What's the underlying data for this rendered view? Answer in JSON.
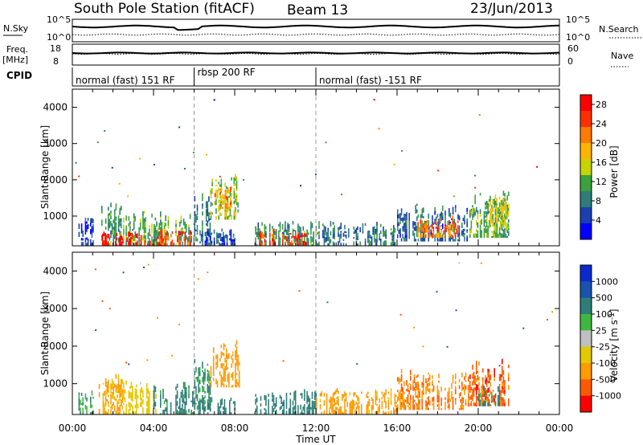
{
  "header": {
    "station": "South Pole Station (fitACF)",
    "beam": "Beam 13",
    "date": "23/Jun/2013"
  },
  "top_panels": {
    "nsky_label": "N.Sky",
    "nsky_ticks": [
      "10^5",
      "10^0"
    ],
    "nsearch_label": "N.Search",
    "nsearch_ticks": [
      "10^5",
      "10^0"
    ],
    "freq_label_1": "Freq.",
    "freq_label_2": "[MHz]",
    "freq_ticks": [
      "18",
      "8"
    ],
    "nave_label": "Nave",
    "nave_ticks": [
      "60",
      "0"
    ],
    "cpid_label": "CPID"
  },
  "cpid_segments": [
    {
      "label": "normal (fast) 151 RF",
      "start_hour": 0
    },
    {
      "label": "rbsp 200 RF",
      "start_hour": 6
    },
    {
      "label": "normal (fast) -151 RF",
      "start_hour": 12
    }
  ],
  "colors": {
    "power_scale": [
      "#0000ff",
      "#1a3fb0",
      "#2e7d78",
      "#3aa23a",
      "#c8d400",
      "#ffb400",
      "#ff7a00",
      "#ff3000",
      "#ff0000"
    ],
    "velocity_scale": [
      "#0a2ad0",
      "#1b52b0",
      "#2e7d78",
      "#3fb83f",
      "#c0c0c0",
      "#e6c800",
      "#ff9a00",
      "#ff5a00",
      "#ff0000"
    ]
  },
  "chart_data": [
    {
      "type": "heatmap",
      "name": "power",
      "xlabel": "",
      "ylabel": "Slant Range [km]",
      "yticks": [
        "1000",
        "2000",
        "3000",
        "4000"
      ],
      "x_ticks": [
        "00:00",
        "04:00",
        "08:00",
        "12:00",
        "16:00",
        "20:00",
        "00:00"
      ],
      "xlim_hours": [
        0,
        24
      ],
      "ylim_km": [
        180,
        4500
      ],
      "colorbar_label": "Power [dB]",
      "colorbar_ticks": [
        "4",
        "8",
        "12",
        "16",
        "20",
        "24",
        "28"
      ],
      "colorbar_range": [
        0,
        30
      ],
      "regions": [
        {
          "t0": 0.3,
          "t1": 1.1,
          "r0": 180,
          "r1": 900,
          "value": 5
        },
        {
          "t0": 1.3,
          "t1": 2.4,
          "r0": 180,
          "r1": 1300,
          "value": 10
        },
        {
          "t0": 1.4,
          "t1": 2.5,
          "r0": 180,
          "r1": 500,
          "value": 27
        },
        {
          "t0": 2.5,
          "t1": 4.0,
          "r0": 180,
          "r1": 1100,
          "value": 12
        },
        {
          "t0": 2.6,
          "t1": 4.2,
          "r0": 180,
          "r1": 550,
          "value": 28
        },
        {
          "t0": 4.0,
          "t1": 6.0,
          "r0": 180,
          "r1": 1000,
          "value": 11
        },
        {
          "t0": 4.2,
          "t1": 5.8,
          "r0": 180,
          "r1": 600,
          "value": 25
        },
        {
          "t0": 6.0,
          "t1": 6.8,
          "r0": 300,
          "r1": 1600,
          "value": 8
        },
        {
          "t0": 6.8,
          "t1": 8.2,
          "r0": 900,
          "r1": 2100,
          "value": 14
        },
        {
          "t0": 7.0,
          "t1": 7.8,
          "r0": 1200,
          "r1": 1800,
          "value": 20
        },
        {
          "t0": 6.2,
          "t1": 8.0,
          "r0": 180,
          "r1": 600,
          "value": 6
        },
        {
          "t0": 9.0,
          "t1": 12.0,
          "r0": 180,
          "r1": 800,
          "value": 10
        },
        {
          "t0": 9.2,
          "t1": 11.5,
          "r0": 180,
          "r1": 550,
          "value": 26
        },
        {
          "t0": 12.0,
          "t1": 16.0,
          "r0": 180,
          "r1": 800,
          "value": 8
        },
        {
          "t0": 16.0,
          "t1": 19.5,
          "r0": 300,
          "r1": 1300,
          "value": 7
        },
        {
          "t0": 17.0,
          "t1": 19.0,
          "r0": 400,
          "r1": 900,
          "value": 22
        },
        {
          "t0": 19.5,
          "t1": 21.5,
          "r0": 400,
          "r1": 1600,
          "value": 12
        },
        {
          "t0": 20.5,
          "t1": 21.5,
          "r0": 700,
          "r1": 1500,
          "value": 15
        }
      ]
    },
    {
      "type": "heatmap",
      "name": "velocity",
      "xlabel": "Time UT",
      "ylabel": "Slant Range [km]",
      "yticks": [
        "1000",
        "2000",
        "3000",
        "4000"
      ],
      "x_ticks": [
        "00:00",
        "04:00",
        "08:00",
        "12:00",
        "16:00",
        "20:00",
        "00:00"
      ],
      "xlim_hours": [
        0,
        24
      ],
      "ylim_km": [
        180,
        4500
      ],
      "colorbar_label": "Velocity [m s^-1]",
      "colorbar_ticks": [
        "1000",
        "500",
        "100",
        "25",
        "-25",
        "-100",
        "-500",
        "-1000"
      ],
      "colorbar_range": [
        -1200,
        1200
      ],
      "regions": [
        {
          "t0": 0.3,
          "t1": 1.1,
          "r0": 180,
          "r1": 900,
          "value": 100
        },
        {
          "t0": 1.3,
          "t1": 2.5,
          "r0": 180,
          "r1": 1300,
          "value": -150
        },
        {
          "t0": 2.5,
          "t1": 4.2,
          "r0": 180,
          "r1": 1100,
          "value": -60
        },
        {
          "t0": 4.0,
          "t1": 6.0,
          "r0": 180,
          "r1": 1000,
          "value": 200
        },
        {
          "t0": 6.0,
          "t1": 6.8,
          "r0": 300,
          "r1": 1600,
          "value": 120
        },
        {
          "t0": 6.8,
          "t1": 8.2,
          "r0": 900,
          "r1": 2100,
          "value": -300
        },
        {
          "t0": 6.2,
          "t1": 8.0,
          "r0": 180,
          "r1": 600,
          "value": 300
        },
        {
          "t0": 9.0,
          "t1": 12.0,
          "r0": 180,
          "r1": 800,
          "value": 250
        },
        {
          "t0": 12.0,
          "t1": 16.0,
          "r0": 180,
          "r1": 800,
          "value": -200
        },
        {
          "t0": 16.0,
          "t1": 19.5,
          "r0": 300,
          "r1": 1300,
          "value": -500
        },
        {
          "t0": 19.5,
          "t1": 21.5,
          "r0": 400,
          "r1": 1600,
          "value": -700
        },
        {
          "t0": 20.0,
          "t1": 21.2,
          "r0": 400,
          "r1": 900,
          "value": 200
        }
      ]
    }
  ]
}
